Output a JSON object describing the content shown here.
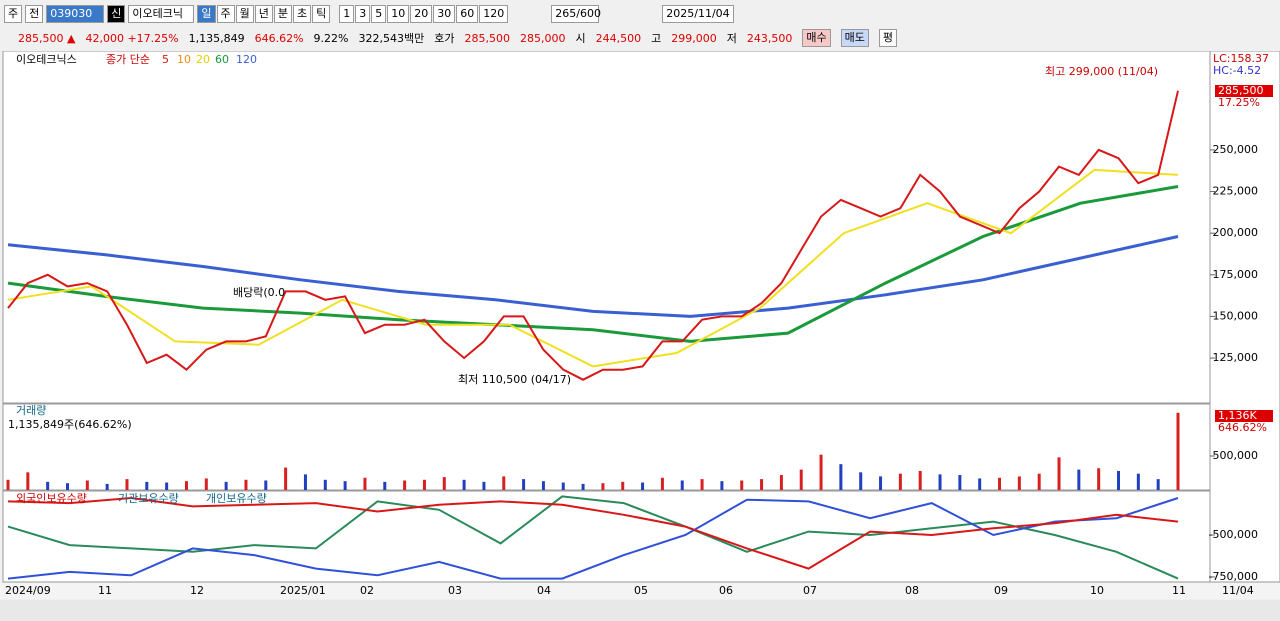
{
  "toolbar": {
    "market": "주",
    "prev": "전",
    "code": "039030",
    "name": "이오테크닉",
    "periods": [
      "일",
      "주",
      "월",
      "년",
      "분",
      "초",
      "틱"
    ],
    "intervals": [
      "1",
      "3",
      "5",
      "10",
      "20",
      "30",
      "60",
      "120"
    ],
    "count": "265/600",
    "date": "2025/11/04"
  },
  "quote": {
    "price": "285,500 ▲",
    "change": "42,000 +17.25%",
    "volume": "1,135,849",
    "volume_ratio": "646.62%",
    "turnover": "9.22%",
    "amount": "322,543백만",
    "ask_label": "호가",
    "ask": "285,500",
    "bid": "285,000",
    "open_label": "시",
    "open": "244,500",
    "high_label": "고",
    "high": "299,000",
    "low_label": "저",
    "low": "243,500",
    "buy": "매수",
    "sell": "매도",
    "avg": "평"
  },
  "price_chart": {
    "stock": "이오테크닉스",
    "legend_label": "종가 단순",
    "ma_names": [
      "5",
      "10",
      "20",
      "60",
      "120"
    ],
    "high_note": "최고 299,000 (11/04)",
    "low_note": "최저 110,500 (04/17)",
    "dividend_note": "배당락(0.0",
    "lc": "LC:158.37",
    "hc": "HC:-4.52",
    "last_label": "285,500",
    "last_pct": "17.25%",
    "ylim": [
      98600,
      308800
    ],
    "yticks": [
      {
        "value": 125000,
        "label": "125,000"
      },
      {
        "value": 150000,
        "label": "150,000"
      },
      {
        "value": 175000,
        "label": "175,000"
      },
      {
        "value": 200000,
        "label": "200,000"
      },
      {
        "value": 225000,
        "label": "225,000"
      },
      {
        "value": 250000,
        "label": "250,000"
      }
    ],
    "close": [
      155000,
      170000,
      175000,
      168000,
      170000,
      165000,
      145000,
      122000,
      127000,
      118000,
      130000,
      135000,
      135000,
      138000,
      165000,
      165000,
      160000,
      162000,
      140000,
      145000,
      145000,
      148000,
      135000,
      125000,
      135000,
      150000,
      150000,
      130000,
      118000,
      112000,
      118000,
      118000,
      120000,
      135000,
      135000,
      148000,
      150000,
      150000,
      158000,
      170000,
      190000,
      210000,
      220000,
      215000,
      210000,
      215000,
      235000,
      225000,
      210000,
      205000,
      200000,
      215000,
      225000,
      240000,
      235000,
      250000,
      245000,
      230000,
      235000,
      285500
    ],
    "ma20": [
      160000,
      168000,
      135000,
      133000,
      160000,
      145000,
      145000,
      120000,
      128000,
      155000,
      200000,
      218000,
      200000,
      238000,
      235000
    ],
    "ma60": [
      170000,
      162000,
      155000,
      152000,
      148000,
      145000,
      142000,
      135000,
      140000,
      170000,
      198000,
      218000,
      228000
    ],
    "ma120": [
      193000,
      187000,
      180000,
      172000,
      165000,
      160000,
      153000,
      150000,
      155000,
      163000,
      172000,
      185000,
      198000
    ]
  },
  "volume_chart": {
    "title": "거래량",
    "info": "1,135,849주(646.62%)",
    "last_label": "1,136K",
    "last_pct": "646.62%",
    "ylim": [
      0,
      1265000
    ],
    "yticks": [
      {
        "value": 500000,
        "label": "500,000"
      }
    ],
    "values": [
      150000,
      260000,
      120000,
      100000,
      140000,
      90000,
      160000,
      120000,
      110000,
      130000,
      170000,
      120000,
      150000,
      140000,
      330000,
      230000,
      150000,
      130000,
      180000,
      120000,
      140000,
      150000,
      190000,
      150000,
      120000,
      200000,
      160000,
      130000,
      110000,
      90000,
      100000,
      120000,
      110000,
      180000,
      140000,
      160000,
      130000,
      140000,
      160000,
      220000,
      300000,
      520000,
      380000,
      260000,
      200000,
      240000,
      280000,
      230000,
      220000,
      170000,
      180000,
      200000,
      240000,
      480000,
      300000,
      320000,
      280000,
      240000,
      160000,
      1135849
    ]
  },
  "holdings_chart": {
    "legend": [
      "외국인보유수량",
      "기관보유수량",
      "개인보유수량"
    ],
    "ylim": [
      -780000,
      -244000
    ],
    "yticks": [
      {
        "value": -500000,
        "label": "-500,000"
      },
      {
        "value": -750000,
        "label": "-750,000"
      }
    ],
    "foreign": [
      -300000,
      -310000,
      -280000,
      -330000,
      -320000,
      -310000,
      -360000,
      -320000,
      -300000,
      -320000,
      -380000,
      -450000,
      -580000,
      -700000,
      -480000,
      -500000,
      -460000,
      -430000,
      -380000,
      -420000
    ],
    "institution": [
      -450000,
      -560000,
      -580000,
      -600000,
      -560000,
      -580000,
      -300000,
      -350000,
      -550000,
      -270000,
      -310000,
      -450000,
      -600000,
      -480000,
      -500000,
      -460000,
      -420000,
      -500000,
      -600000,
      -760000
    ],
    "individual": [
      -760000,
      -720000,
      -740000,
      -580000,
      -620000,
      -700000,
      -740000,
      -660000,
      -760000,
      -760000,
      -620000,
      -500000,
      -290000,
      -300000,
      -400000,
      -310000,
      -500000,
      -420000,
      -400000,
      -280000
    ]
  },
  "x_axis": {
    "labels": [
      "2024/09",
      "11",
      "12",
      "2025/01",
      "02",
      "03",
      "04",
      "05",
      "06",
      "07",
      "08",
      "09",
      "10",
      "11"
    ],
    "end": "11/04"
  }
}
